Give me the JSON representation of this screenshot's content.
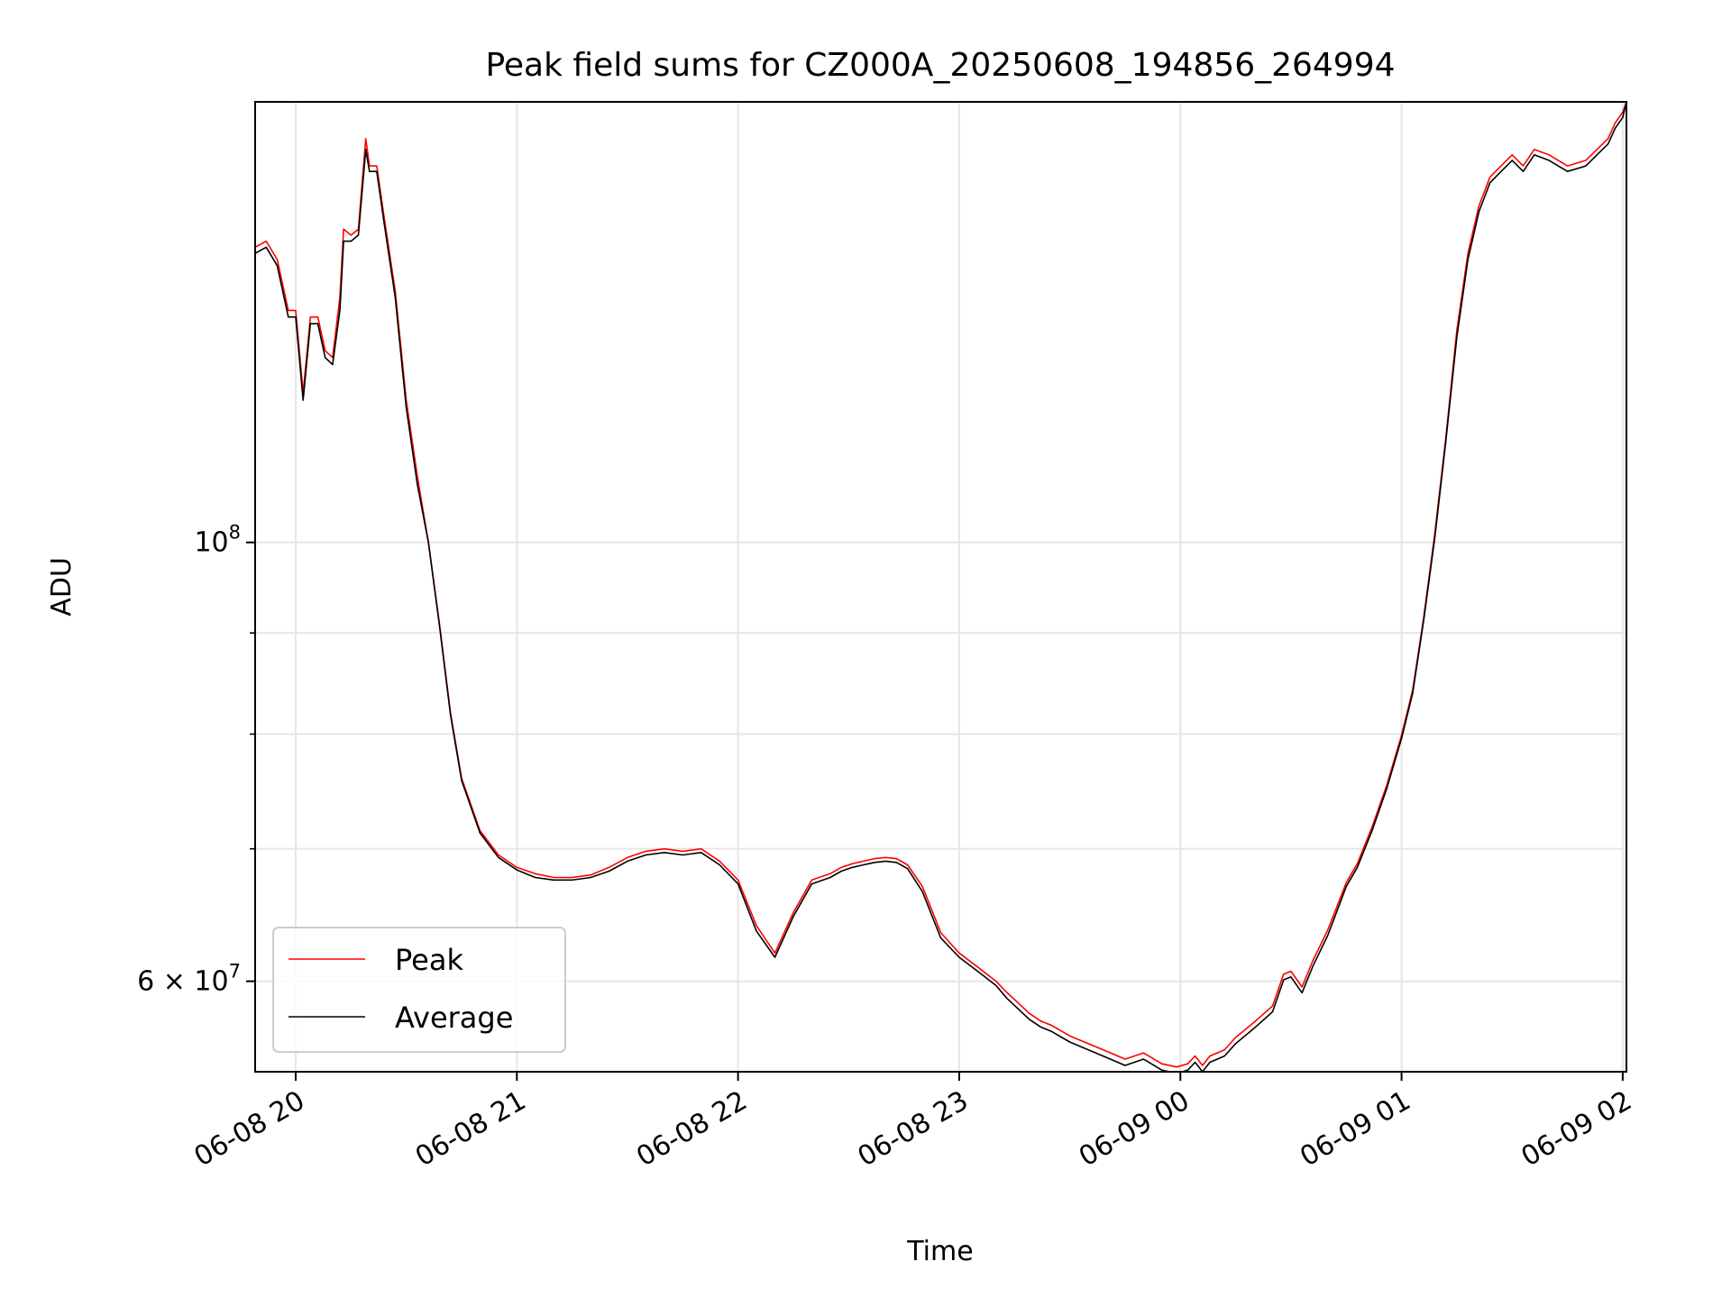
{
  "chart_data": {
    "type": "line",
    "title": "Peak field sums for CZ000A_20250608_194856_264994",
    "xlabel": "Time",
    "ylabel": "ADU",
    "y_scale": "log",
    "grid": true,
    "legend_position": "lower-left",
    "xlim": [
      "2025-06-08 19:49",
      "2025-06-09 02:01"
    ],
    "ylim": [
      54000000,
      167000000
    ],
    "x_ticks": [
      {
        "value": "2025-06-08 20:00",
        "label": "06-08 20"
      },
      {
        "value": "2025-06-08 21:00",
        "label": "06-08 21"
      },
      {
        "value": "2025-06-08 22:00",
        "label": "06-08 22"
      },
      {
        "value": "2025-06-08 23:00",
        "label": "06-08 23"
      },
      {
        "value": "2025-06-09 00:00",
        "label": "06-09 00"
      },
      {
        "value": "2025-06-09 01:00",
        "label": "06-09 01"
      },
      {
        "value": "2025-06-09 02:00",
        "label": "06-09 02"
      }
    ],
    "y_ticks_major": [
      {
        "value": 60000000,
        "label": "6×10^7",
        "mantissa": "6",
        "exponent": "7"
      },
      {
        "value": 100000000,
        "label": "10^8",
        "mantissa": "",
        "exponent": "8"
      }
    ],
    "y_ticks_minor": [
      70000000,
      80000000,
      90000000,
      200000000
    ],
    "series": [
      {
        "name": "Peak",
        "color": "#ff0000",
        "x": [
          "2025-06-08 19:49",
          "2025-06-08 19:52",
          "2025-06-08 19:55",
          "2025-06-08 19:58",
          "2025-06-08 20:00",
          "2025-06-08 20:02",
          "2025-06-08 20:04",
          "2025-06-08 20:06",
          "2025-06-08 20:08",
          "2025-06-08 20:10",
          "2025-06-08 20:12",
          "2025-06-08 20:13",
          "2025-06-08 20:15",
          "2025-06-08 20:17",
          "2025-06-08 20:19",
          "2025-06-08 20:20",
          "2025-06-08 20:22",
          "2025-06-08 20:24",
          "2025-06-08 20:27",
          "2025-06-08 20:30",
          "2025-06-08 20:33",
          "2025-06-08 20:36",
          "2025-06-08 20:39",
          "2025-06-08 20:42",
          "2025-06-08 20:45",
          "2025-06-08 20:50",
          "2025-06-08 20:55",
          "2025-06-08 21:00",
          "2025-06-08 21:05",
          "2025-06-08 21:10",
          "2025-06-08 21:15",
          "2025-06-08 21:20",
          "2025-06-08 21:25",
          "2025-06-08 21:30",
          "2025-06-08 21:35",
          "2025-06-08 21:40",
          "2025-06-08 21:45",
          "2025-06-08 21:50",
          "2025-06-08 21:55",
          "2025-06-08 22:00",
          "2025-06-08 22:05",
          "2025-06-08 22:10",
          "2025-06-08 22:15",
          "2025-06-08 22:20",
          "2025-06-08 22:25",
          "2025-06-08 22:28",
          "2025-06-08 22:31",
          "2025-06-08 22:34",
          "2025-06-08 22:37",
          "2025-06-08 22:40",
          "2025-06-08 22:43",
          "2025-06-08 22:46",
          "2025-06-08 22:50",
          "2025-06-08 22:55",
          "2025-06-08 23:00",
          "2025-06-08 23:05",
          "2025-06-08 23:10",
          "2025-06-08 23:13",
          "2025-06-08 23:16",
          "2025-06-08 23:19",
          "2025-06-08 23:22",
          "2025-06-08 23:25",
          "2025-06-08 23:30",
          "2025-06-08 23:35",
          "2025-06-08 23:40",
          "2025-06-08 23:45",
          "2025-06-08 23:50",
          "2025-06-08 23:55",
          "2025-06-08 23:59",
          "2025-06-09 00:02",
          "2025-06-09 00:04",
          "2025-06-09 00:06",
          "2025-06-09 00:08",
          "2025-06-09 00:10",
          "2025-06-09 00:12",
          "2025-06-09 00:15",
          "2025-06-09 00:20",
          "2025-06-09 00:25",
          "2025-06-09 00:28",
          "2025-06-09 00:30",
          "2025-06-09 00:33",
          "2025-06-09 00:36",
          "2025-06-09 00:40",
          "2025-06-09 00:45",
          "2025-06-09 00:48",
          "2025-06-09 00:52",
          "2025-06-09 00:56",
          "2025-06-09 01:00",
          "2025-06-09 01:03",
          "2025-06-09 01:06",
          "2025-06-09 01:09",
          "2025-06-09 01:12",
          "2025-06-09 01:15",
          "2025-06-09 01:18",
          "2025-06-09 01:21",
          "2025-06-09 01:24",
          "2025-06-09 01:27",
          "2025-06-09 01:30",
          "2025-06-09 01:33",
          "2025-06-09 01:36",
          "2025-06-09 01:40",
          "2025-06-09 01:45",
          "2025-06-09 01:50",
          "2025-06-09 01:53",
          "2025-06-09 01:56",
          "2025-06-09 01:58",
          "2025-06-09 02:00",
          "2025-06-09 02:01"
        ],
        "y": [
          141000000,
          142000000,
          139000000,
          131000000,
          131000000,
          119000000,
          130000000,
          130000000,
          125000000,
          124000000,
          133000000,
          144000000,
          143000000,
          144000000,
          160000000,
          155000000,
          155000000,
          146000000,
          134000000,
          118000000,
          108000000,
          100000000,
          91000000,
          82000000,
          76000000,
          71500000,
          69500000,
          68500000,
          68000000,
          67700000,
          67700000,
          67900000,
          68500000,
          69300000,
          69800000,
          70000000,
          69800000,
          70000000,
          69000000,
          67500000,
          64000000,
          62000000,
          65000000,
          67500000,
          68000000,
          68500000,
          68800000,
          69000000,
          69200000,
          69300000,
          69200000,
          68700000,
          67000000,
          63500000,
          62000000,
          61000000,
          60000000,
          59200000,
          58500000,
          57800000,
          57300000,
          57000000,
          56300000,
          55800000,
          55300000,
          54800000,
          55200000,
          54500000,
          54300000,
          54500000,
          55000000,
          54400000,
          55000000,
          55200000,
          55400000,
          56200000,
          57200000,
          58300000,
          60500000,
          60700000,
          59600000,
          61500000,
          63700000,
          67300000,
          68800000,
          71800000,
          75400000,
          79900000,
          84200000,
          91600000,
          101000000,
          113000000,
          128000000,
          140000000,
          148000000,
          153000000,
          155000000,
          157000000,
          155000000,
          158000000,
          157000000,
          155000000,
          156000000,
          158000000,
          160000000,
          163000000,
          165000000,
          167000000
        ],
        "_note": ""
      },
      {
        "name": "Average",
        "color": "#000000",
        "x": [
          "2025-06-08 19:49",
          "2025-06-08 19:52",
          "2025-06-08 19:55",
          "2025-06-08 19:58",
          "2025-06-08 20:00",
          "2025-06-08 20:02",
          "2025-06-08 20:04",
          "2025-06-08 20:06",
          "2025-06-08 20:08",
          "2025-06-08 20:10",
          "2025-06-08 20:12",
          "2025-06-08 20:13",
          "2025-06-08 20:15",
          "2025-06-08 20:17",
          "2025-06-08 20:19",
          "2025-06-08 20:20",
          "2025-06-08 20:22",
          "2025-06-08 20:24",
          "2025-06-08 20:27",
          "2025-06-08 20:30",
          "2025-06-08 20:33",
          "2025-06-08 20:36",
          "2025-06-08 20:39",
          "2025-06-08 20:42",
          "2025-06-08 20:45",
          "2025-06-08 20:50",
          "2025-06-08 20:55",
          "2025-06-08 21:00",
          "2025-06-08 21:05",
          "2025-06-08 21:10",
          "2025-06-08 21:15",
          "2025-06-08 21:20",
          "2025-06-08 21:25",
          "2025-06-08 21:30",
          "2025-06-08 21:35",
          "2025-06-08 21:40",
          "2025-06-08 21:45",
          "2025-06-08 21:50",
          "2025-06-08 21:55",
          "2025-06-08 22:00",
          "2025-06-08 22:05",
          "2025-06-08 22:10",
          "2025-06-08 22:15",
          "2025-06-08 22:20",
          "2025-06-08 22:25",
          "2025-06-08 22:28",
          "2025-06-08 22:31",
          "2025-06-08 22:34",
          "2025-06-08 22:37",
          "2025-06-08 22:40",
          "2025-06-08 22:43",
          "2025-06-08 22:46",
          "2025-06-08 22:50",
          "2025-06-08 22:55",
          "2025-06-08 23:00",
          "2025-06-08 23:05",
          "2025-06-08 23:10",
          "2025-06-08 23:13",
          "2025-06-08 23:16",
          "2025-06-08 23:19",
          "2025-06-08 23:22",
          "2025-06-08 23:25",
          "2025-06-08 23:30",
          "2025-06-08 23:35",
          "2025-06-08 23:40",
          "2025-06-08 23:45",
          "2025-06-08 23:50",
          "2025-06-08 23:55",
          "2025-06-08 23:59",
          "2025-06-09 00:02",
          "2025-06-09 00:04",
          "2025-06-09 00:06",
          "2025-06-09 00:08",
          "2025-06-09 00:10",
          "2025-06-09 00:12",
          "2025-06-09 00:15",
          "2025-06-09 00:20",
          "2025-06-09 00:25",
          "2025-06-09 00:28",
          "2025-06-09 00:30",
          "2025-06-09 00:33",
          "2025-06-09 00:36",
          "2025-06-09 00:40",
          "2025-06-09 00:45",
          "2025-06-09 00:48",
          "2025-06-09 00:52",
          "2025-06-09 00:56",
          "2025-06-09 01:00",
          "2025-06-09 01:03",
          "2025-06-09 01:06",
          "2025-06-09 01:09",
          "2025-06-09 01:12",
          "2025-06-09 01:15",
          "2025-06-09 01:18",
          "2025-06-09 01:21",
          "2025-06-09 01:24",
          "2025-06-09 01:27",
          "2025-06-09 01:30",
          "2025-06-09 01:33",
          "2025-06-09 01:36",
          "2025-06-09 01:40",
          "2025-06-09 01:45",
          "2025-06-09 01:50",
          "2025-06-09 01:53",
          "2025-06-09 01:56",
          "2025-06-09 01:58",
          "2025-06-09 02:00",
          "2025-06-09 02:01"
        ],
        "y": [
          140000000,
          141000000,
          138000000,
          130000000,
          130000000,
          118000000,
          129000000,
          129000000,
          124000000,
          123000000,
          131000000,
          142000000,
          142000000,
          143000000,
          158000000,
          154000000,
          154000000,
          145000000,
          133000000,
          117000000,
          107000000,
          100000000,
          90800000,
          81800000,
          75800000,
          71300000,
          69300000,
          68300000,
          67700000,
          67500000,
          67500000,
          67700000,
          68200000,
          69000000,
          69500000,
          69700000,
          69500000,
          69700000,
          68700000,
          67200000,
          63600000,
          61700000,
          64700000,
          67200000,
          67700000,
          68200000,
          68500000,
          68700000,
          68900000,
          69000000,
          68900000,
          68400000,
          66600000,
          63100000,
          61700000,
          60700000,
          59700000,
          58800000,
          58100000,
          57400000,
          56900000,
          56600000,
          55900000,
          55400000,
          54900000,
          54400000,
          54800000,
          54100000,
          53900000,
          54100000,
          54600000,
          54000000,
          54600000,
          54800000,
          55000000,
          55800000,
          56800000,
          57900000,
          60100000,
          60300000,
          59200000,
          61100000,
          63300000,
          67000000,
          68500000,
          71500000,
          75100000,
          79600000,
          83900000,
          91300000,
          100500000,
          112500000,
          127000000,
          139000000,
          147000000,
          152000000,
          154000000,
          156000000,
          154000000,
          157000000,
          156000000,
          154000000,
          155000000,
          157000000,
          159000000,
          162000000,
          164000000,
          167000000
        ],
        "_note": ""
      }
    ]
  }
}
